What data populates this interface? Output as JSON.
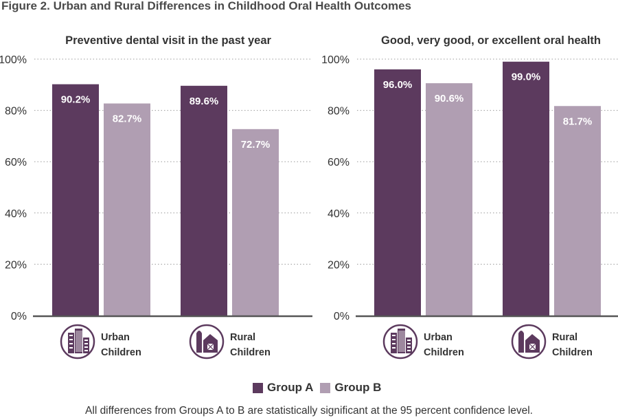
{
  "figure_title": "Figure 2. Urban and Rural Differences in Childhood Oral Health Outcomes",
  "footnote": "All differences from Groups A to B are statistically significant at the 95 percent confidence level.",
  "colors": {
    "group_a": "#5c3a5e",
    "group_b": "#b09eb2",
    "axis": "#555555",
    "grid": "#999999",
    "icon": "#5c3a5e"
  },
  "legend": [
    {
      "label": "Group A",
      "color": "#5c3a5e"
    },
    {
      "label": "Group B",
      "color": "#b09eb2"
    }
  ],
  "chart_data": [
    {
      "type": "bar",
      "title": "Preventive dental visit in the past year",
      "categories": [
        {
          "label_lines": [
            "Urban",
            "Children"
          ],
          "icon": "city-buildings-icon"
        },
        {
          "label_lines": [
            "Rural",
            "Children"
          ],
          "icon": "farm-barn-icon"
        }
      ],
      "series": [
        {
          "name": "Group A",
          "values": [
            90.2,
            89.6
          ],
          "labels": [
            "90.2%",
            "89.6%"
          ]
        },
        {
          "name": "Group B",
          "values": [
            82.7,
            72.7
          ],
          "labels": [
            "82.7%",
            "72.7%"
          ]
        }
      ],
      "ylim": [
        0,
        100
      ],
      "yticks": [
        0,
        20,
        40,
        60,
        80,
        100
      ],
      "ytick_labels": [
        "0%",
        "20%",
        "40%",
        "60%",
        "80%",
        "100%"
      ],
      "grid": true
    },
    {
      "type": "bar",
      "title": "Good, very good, or excellent oral health",
      "categories": [
        {
          "label_lines": [
            "Urban",
            "Children"
          ],
          "icon": "city-buildings-icon"
        },
        {
          "label_lines": [
            "Rural",
            "Children"
          ],
          "icon": "farm-barn-icon"
        }
      ],
      "series": [
        {
          "name": "Group A",
          "values": [
            96.0,
            99.0
          ],
          "labels": [
            "96.0%",
            "99.0%"
          ]
        },
        {
          "name": "Group B",
          "values": [
            90.6,
            81.7
          ],
          "labels": [
            "90.6%",
            "81.7%"
          ]
        }
      ],
      "ylim": [
        0,
        100
      ],
      "yticks": [
        0,
        20,
        40,
        60,
        80,
        100
      ],
      "ytick_labels": [
        "0%",
        "20%",
        "40%",
        "60%",
        "80%",
        "100%"
      ],
      "grid": true
    }
  ]
}
